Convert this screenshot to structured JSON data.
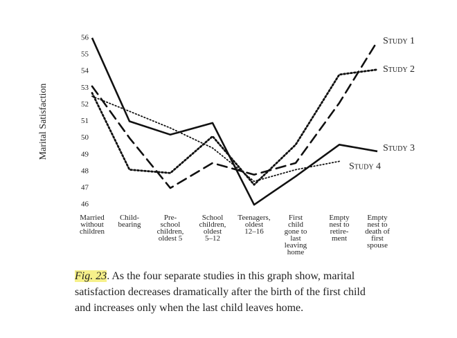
{
  "chart_data": {
    "type": "line",
    "ylabel": "Marital Satisfaction",
    "categories": [
      [
        "Married",
        "without",
        "children"
      ],
      [
        "Child-",
        "bearing"
      ],
      [
        "Pre-",
        "school",
        "children,",
        "oldest 5"
      ],
      [
        "School",
        "children,",
        "oldest",
        "5–12"
      ],
      [
        "Teenagers,",
        "oldest",
        "12–16"
      ],
      [
        "First",
        "child",
        "gone to",
        "last",
        "leaving",
        "home"
      ],
      [
        "Empty",
        "nest to",
        "retire-",
        "ment"
      ],
      [
        "Empty",
        "nest to",
        "death of",
        "first",
        "spouse"
      ]
    ],
    "series": [
      {
        "name": "Study 1",
        "color": "#111111",
        "style": "dashed",
        "values": [
          53.1,
          50.0,
          47.0,
          48.5,
          47.8,
          48.5,
          52.1,
          55.8
        ]
      },
      {
        "name": "Study 2",
        "color": "#111111",
        "style": "dotted",
        "values": [
          52.7,
          48.1,
          47.9,
          50.1,
          47.2,
          49.6,
          53.8,
          54.1
        ]
      },
      {
        "name": "Study 3",
        "color": "#111111",
        "style": "solid",
        "values": [
          56.0,
          51.0,
          50.2,
          50.9,
          46.0,
          47.7,
          49.6,
          49.2
        ]
      },
      {
        "name": "Study 4",
        "color": "#111111",
        "style": "fine-dotted",
        "values": [
          52.5,
          51.6,
          50.6,
          49.4,
          47.4,
          48.1,
          48.6,
          null
        ]
      }
    ],
    "ylim": [
      45.8,
      56.2
    ],
    "yticks": [
      46,
      47,
      48,
      49,
      50,
      51,
      52,
      53,
      54,
      55,
      56
    ],
    "grid": false,
    "caption_label": "Fig. 23",
    "caption": ". As the four separate studies in this graph show, marital satisfaction decreases dramatically after the birth of the first child and increases only when the last child leaves home."
  }
}
